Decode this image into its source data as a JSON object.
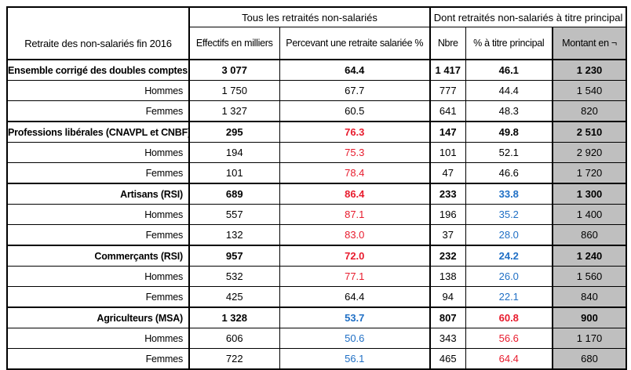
{
  "colors": {
    "k": "#000000",
    "r": "#e81b2d",
    "b": "#1f6fc5",
    "gray_fill": "#bfbfbf",
    "border": "#000000"
  },
  "table": {
    "corner_label": "Retraite des non-salariés fin 2016",
    "groups": [
      {
        "label": "Tous les retraités non-salariés",
        "colspan": 2
      },
      {
        "label": "Dont retraités non-salariés à titre principal",
        "colspan": 3
      }
    ],
    "columns": [
      "Effectifs en milliers",
      "Percevant une retraite salariée %",
      "Nbre",
      "% à titre principal",
      "Montant en ¬"
    ],
    "rows": [
      {
        "label": "Ensemble corrigé des doubles comptes",
        "bold": true,
        "values": [
          "3 077",
          "64.4",
          "1 417",
          "46.1",
          "1 230"
        ],
        "colors": [
          "k",
          "k",
          "k",
          "k",
          "k"
        ]
      },
      {
        "label": "Hommes",
        "bold": false,
        "values": [
          "1 750",
          "67.7",
          "777",
          "44.4",
          "1 540"
        ],
        "colors": [
          "k",
          "k",
          "k",
          "k",
          "k"
        ]
      },
      {
        "label": "Femmes",
        "bold": false,
        "values": [
          "1 327",
          "60.5",
          "641",
          "48.3",
          "820"
        ],
        "colors": [
          "k",
          "k",
          "k",
          "k",
          "k"
        ]
      },
      {
        "label": "Professions libérales (CNAVPL et CNBF)",
        "bold": true,
        "values": [
          "295",
          "76.3",
          "147",
          "49.8",
          "2 510"
        ],
        "colors": [
          "k",
          "r",
          "k",
          "k",
          "k"
        ]
      },
      {
        "label": "Hommes",
        "bold": false,
        "values": [
          "194",
          "75.3",
          "101",
          "52.1",
          "2 920"
        ],
        "colors": [
          "k",
          "r",
          "k",
          "k",
          "k"
        ]
      },
      {
        "label": "Femmes",
        "bold": false,
        "values": [
          "101",
          "78.4",
          "47",
          "46.6",
          "1 720"
        ],
        "colors": [
          "k",
          "r",
          "k",
          "k",
          "k"
        ]
      },
      {
        "label": "Artisans (RSI)",
        "bold": true,
        "values": [
          "689",
          "86.4",
          "233",
          "33.8",
          "1 300"
        ],
        "colors": [
          "k",
          "r",
          "k",
          "b",
          "k"
        ]
      },
      {
        "label": "Hommes",
        "bold": false,
        "values": [
          "557",
          "87.1",
          "196",
          "35.2",
          "1 400"
        ],
        "colors": [
          "k",
          "r",
          "k",
          "b",
          "k"
        ]
      },
      {
        "label": "Femmes",
        "bold": false,
        "values": [
          "132",
          "83.0",
          "37",
          "28.0",
          "860"
        ],
        "colors": [
          "k",
          "r",
          "k",
          "b",
          "k"
        ]
      },
      {
        "label": "Commerçants (RSI)",
        "bold": true,
        "values": [
          "957",
          "72.0",
          "232",
          "24.2",
          "1 240"
        ],
        "colors": [
          "k",
          "r",
          "k",
          "b",
          "k"
        ]
      },
      {
        "label": "Hommes",
        "bold": false,
        "values": [
          "532",
          "77.1",
          "138",
          "26.0",
          "1 560"
        ],
        "colors": [
          "k",
          "r",
          "k",
          "b",
          "k"
        ]
      },
      {
        "label": "Femmes",
        "bold": false,
        "values": [
          "425",
          "64.4",
          "94",
          "22.1",
          "840"
        ],
        "colors": [
          "k",
          "k",
          "k",
          "b",
          "k"
        ]
      },
      {
        "label": "Agriculteurs (MSA)",
        "bold": true,
        "values": [
          "1 328",
          "53.7",
          "807",
          "60.8",
          "900"
        ],
        "colors": [
          "k",
          "b",
          "k",
          "r",
          "k"
        ]
      },
      {
        "label": "Hommes",
        "bold": false,
        "values": [
          "606",
          "50.6",
          "343",
          "56.6",
          "1 170"
        ],
        "colors": [
          "k",
          "b",
          "k",
          "r",
          "k"
        ]
      },
      {
        "label": "Femmes",
        "bold": false,
        "values": [
          "722",
          "56.1",
          "465",
          "64.4",
          "680"
        ],
        "colors": [
          "k",
          "b",
          "k",
          "r",
          "k"
        ]
      }
    ]
  }
}
